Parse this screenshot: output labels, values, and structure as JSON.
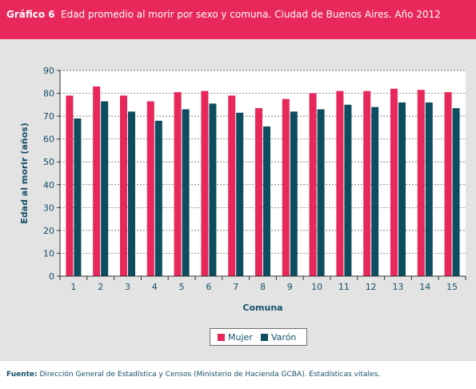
{
  "header": {
    "number": "Gráfico 6",
    "title": "Edad promedio al morir por sexo y comuna. Ciudad de Buenos Aires. Año 2012"
  },
  "footer": {
    "label": "Fuente:",
    "text": "Dirección General de Estadística y Censos (Ministerio de Hacienda GCBA). Estadísticas vitales."
  },
  "colors": {
    "header": "#e8275a",
    "mujer": "#e8275a",
    "varon": "#0d4d60",
    "axis_text": "#16506a"
  },
  "chart_data": {
    "type": "bar",
    "categories": [
      "1",
      "2",
      "3",
      "4",
      "5",
      "6",
      "7",
      "8",
      "9",
      "10",
      "11",
      "12",
      "13",
      "14",
      "15"
    ],
    "series": [
      {
        "name": "Mujer",
        "values": [
          79,
          83,
          79,
          76.5,
          80.5,
          81,
          79,
          73.5,
          77.5,
          80,
          81,
          81,
          82,
          81.5,
          80.5
        ]
      },
      {
        "name": "Varón",
        "values": [
          69,
          76.5,
          72,
          68,
          73,
          75.5,
          71.5,
          65.5,
          72,
          73,
          75,
          74,
          76,
          76,
          73.5
        ]
      }
    ],
    "yticks": [
      "0",
      "10",
      "20",
      "30",
      "40",
      "50",
      "60",
      "70",
      "80",
      "90"
    ],
    "ylim": [
      0,
      90
    ],
    "xlabel": "Comuna",
    "ylabel": "Edad al morir (años)",
    "grid": true,
    "legend_position": "bottom-center"
  }
}
